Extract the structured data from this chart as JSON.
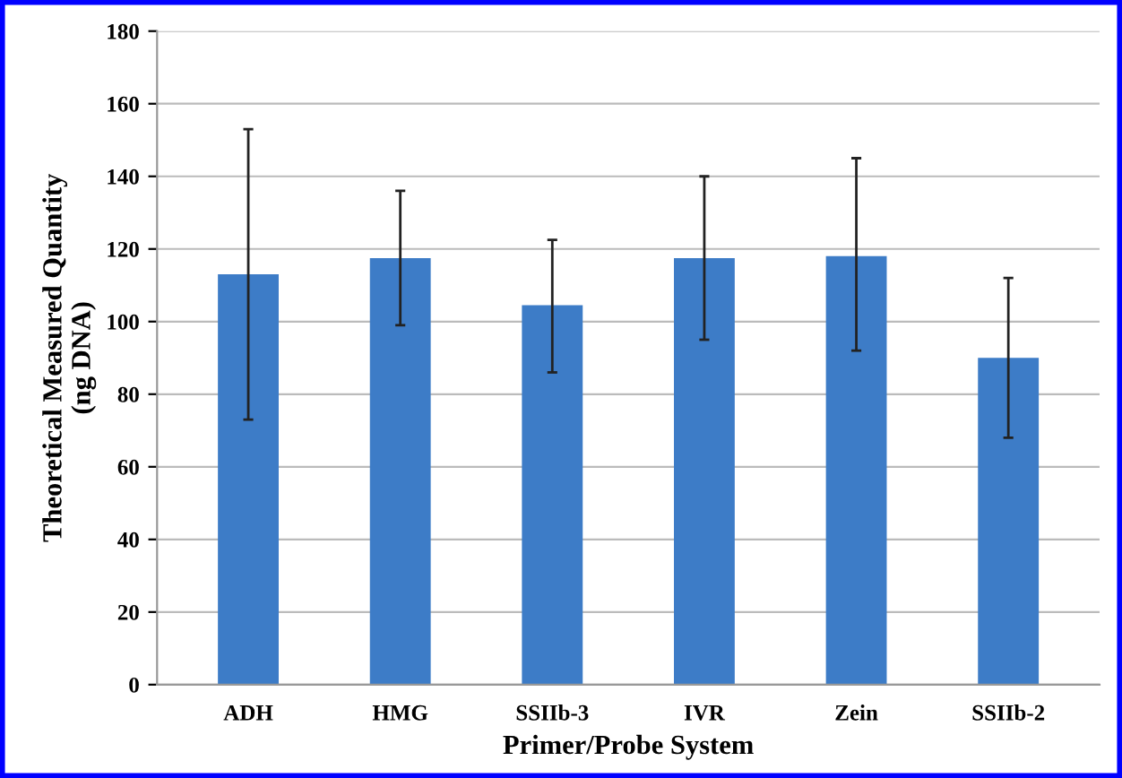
{
  "chart_data": {
    "type": "bar",
    "xlabel": "Primer/Probe System",
    "ylabel": "Theoretical Measured Quantity\n(ng DNA)",
    "categories": [
      "ADH",
      "HMG",
      "SSIIb-3",
      "IVR",
      "Zein",
      "SSIIb-2"
    ],
    "values": [
      113,
      117.5,
      104.5,
      117.5,
      118,
      90
    ],
    "errors": [
      [
        73,
        153
      ],
      [
        99,
        136
      ],
      [
        86,
        122.5
      ],
      [
        95,
        140
      ],
      [
        92,
        145
      ],
      [
        68,
        112
      ]
    ],
    "color": "#3d7cc7",
    "ylim": [
      0,
      180
    ],
    "yticks": [
      0,
      20,
      40,
      60,
      80,
      100,
      120,
      140,
      160,
      180
    ],
    "grid": "y",
    "legend": false
  }
}
